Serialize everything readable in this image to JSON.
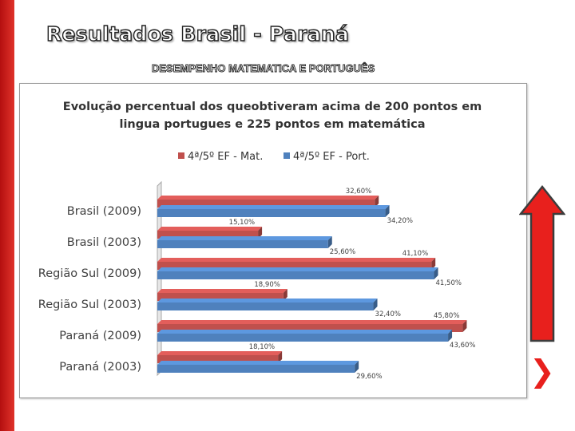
{
  "slide": {
    "title": "Resultados Brasil - Paraná",
    "subtitle": "DESEMPENHO MATEMATICA  E PORTUGUÊS",
    "colors": {
      "accent": "#e0332b",
      "arrow": "#e8201d",
      "mat": "#c0504d",
      "port": "#4f81bd"
    },
    "icons": {
      "arrow": "arrow-up-icon",
      "next": "chevron-right-icon"
    }
  },
  "chart_data": {
    "type": "bar",
    "orientation": "horizontal",
    "title_lines": [
      "Evolução percentual dos queobtiveram acima de 200 pontos em",
      "lingua portugues e 225 pontos em matemática"
    ],
    "categories": [
      "Brasil (2009)",
      "Brasil (2003)",
      "Região Sul (2009)",
      "Região Sul (2003)",
      "Paraná (2009)",
      "Paraná (2003)"
    ],
    "series": [
      {
        "name": "4ª/5º EF - Mat.",
        "color": "#c0504d",
        "values": [
          32.6,
          15.1,
          41.1,
          18.9,
          45.8,
          18.1
        ],
        "labels": [
          "32,60%",
          "15,10%",
          "41,10%",
          "18,90%",
          "45,80%",
          "18,10%"
        ]
      },
      {
        "name": "4ª/5º EF - Port.",
        "color": "#4f81bd",
        "values": [
          34.2,
          25.6,
          41.5,
          32.4,
          43.6,
          29.6
        ],
        "labels": [
          "34,20%",
          "25,60%",
          "41,50%",
          "32,40%",
          "43,60%",
          "29,60%"
        ]
      }
    ],
    "xlim": [
      0,
      50
    ],
    "grid": false,
    "legend_position": "top",
    "three_d": true
  }
}
